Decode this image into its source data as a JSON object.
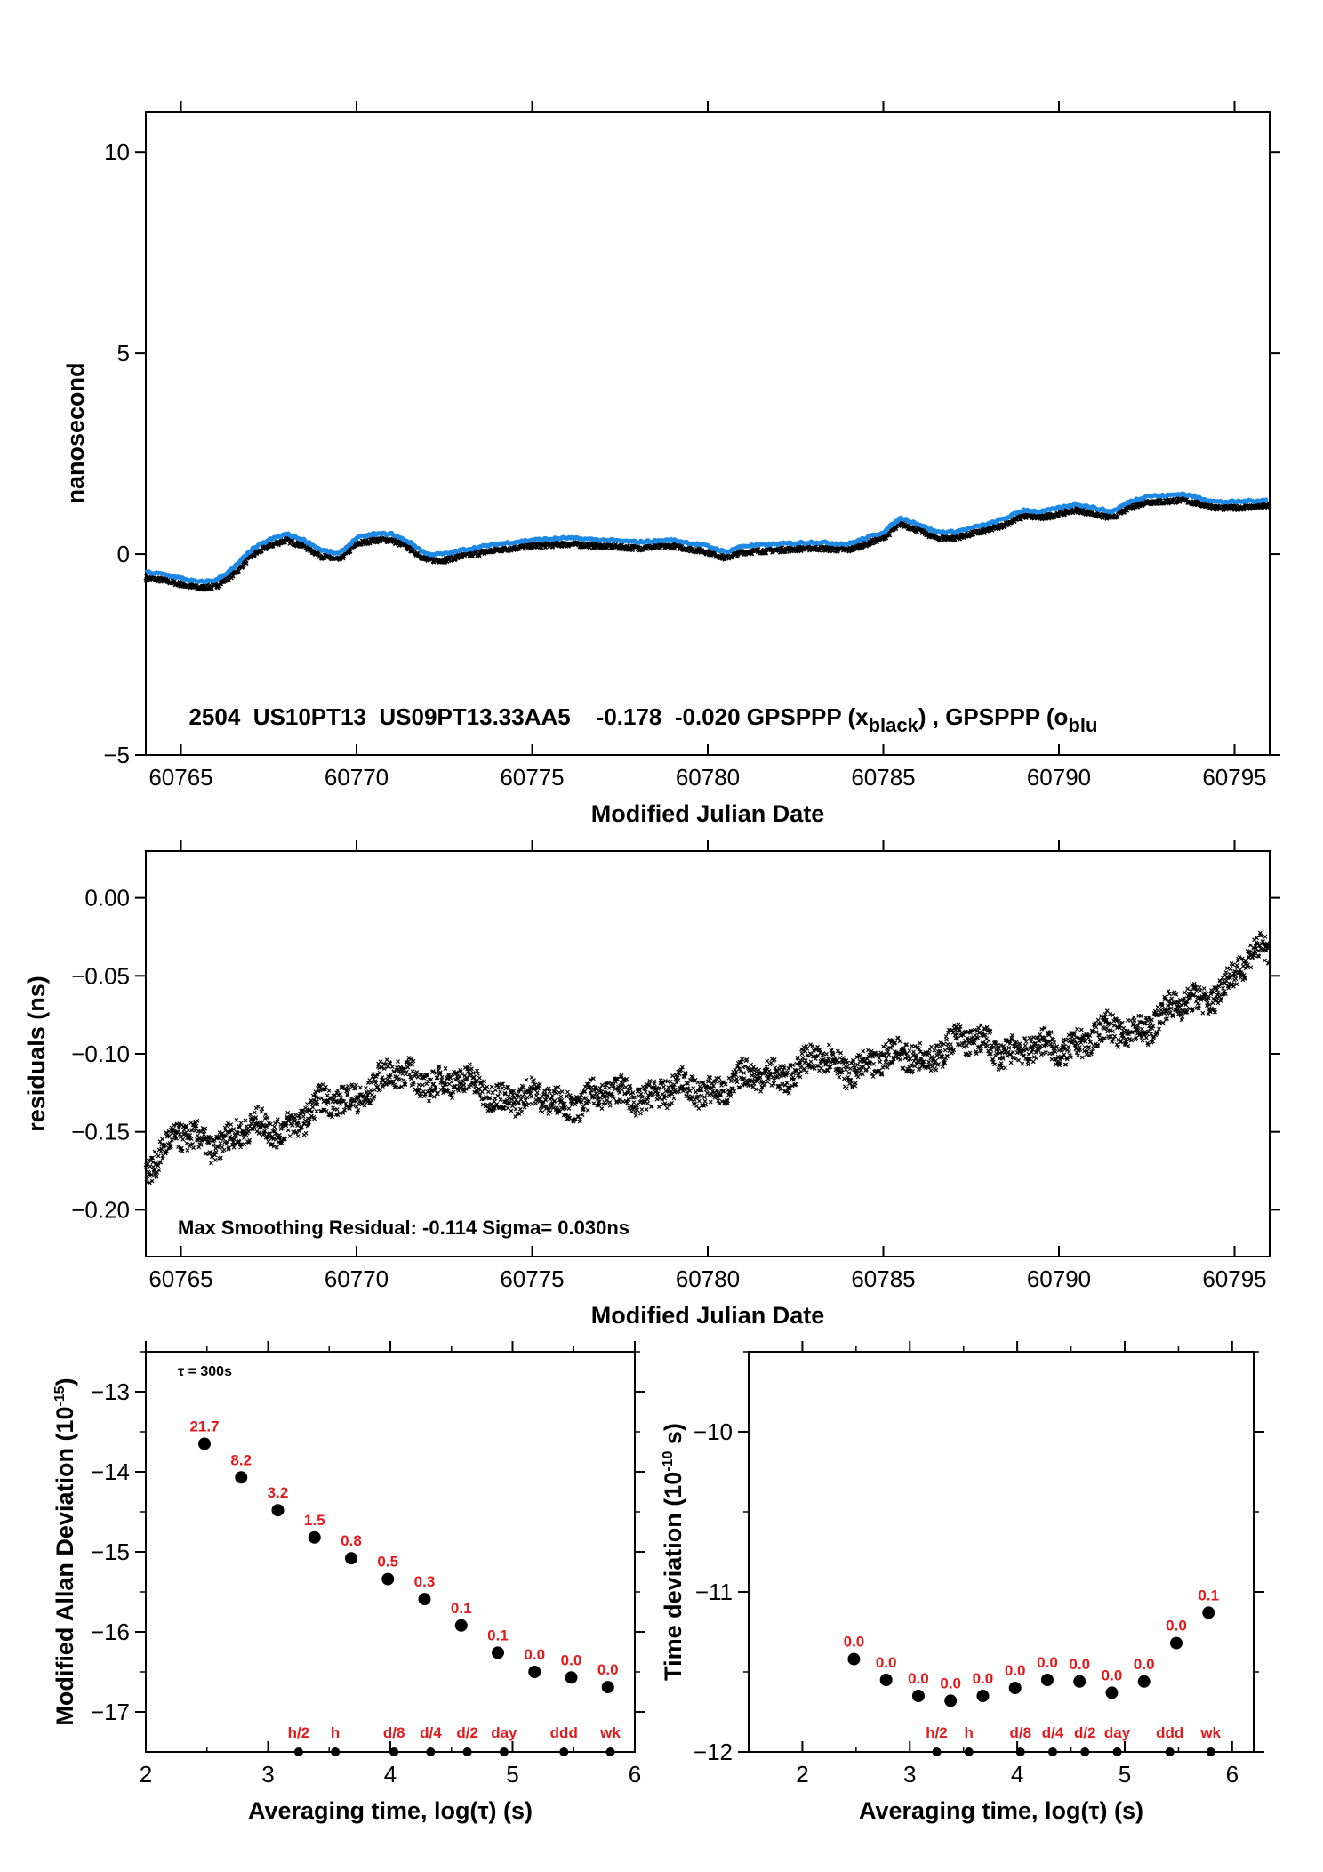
{
  "colors": {
    "black_series": "#000000",
    "blue_series": "#1e88e5",
    "label_red": "#e31a1c"
  },
  "chart_data": [
    {
      "type": "line",
      "ylabel": "nanosecond",
      "xlabel": "Modified Julian Date",
      "xlim": [
        60764,
        60796
      ],
      "ylim": [
        -5,
        11
      ],
      "xticks": [
        60765,
        60770,
        60775,
        60780,
        60785,
        60790,
        60795
      ],
      "yticks": [
        -5,
        0,
        5,
        10
      ],
      "annotation": {
        "main": "_2504_US10PT13_US09PT13.33AA5__-0.178_-0.020     GPSPPP (x",
        "sub1": "black",
        "mid": ") ,  GPSPPP (o",
        "sub2": "blu"
      },
      "series": [
        {
          "color": "black",
          "marker": "x",
          "x": [
            60764,
            60764.5,
            60765,
            60765.5,
            60766,
            60766.5,
            60767,
            60767.5,
            60768,
            60768.5,
            60769,
            60769.5,
            60770,
            60770.5,
            60771,
            60771.5,
            60772,
            60772.5,
            60773,
            60774,
            60775,
            60776,
            60777,
            60778,
            60779,
            60780,
            60780.5,
            60781,
            60782,
            60783,
            60784,
            60785,
            60785.5,
            60786,
            60786.5,
            60787,
            60787.5,
            60788,
            60788.5,
            60789,
            60789.5,
            60790,
            60790.5,
            60791,
            60791.5,
            60792,
            60792.5,
            60793,
            60793.5,
            60794,
            60794.5,
            60795,
            60796
          ],
          "y": [
            -0.6,
            -0.65,
            -0.75,
            -0.85,
            -0.8,
            -0.5,
            -0.05,
            0.2,
            0.35,
            0.2,
            -0.05,
            -0.15,
            0.25,
            0.35,
            0.35,
            0.15,
            -0.15,
            -0.15,
            -0.05,
            0.1,
            0.2,
            0.25,
            0.2,
            0.15,
            0.2,
            0.05,
            -0.1,
            0.05,
            0.1,
            0.15,
            0.1,
            0.4,
            0.75,
            0.6,
            0.4,
            0.4,
            0.5,
            0.6,
            0.75,
            0.95,
            0.9,
            1.0,
            1.1,
            1.0,
            0.9,
            1.15,
            1.3,
            1.3,
            1.35,
            1.25,
            1.15,
            1.15,
            1.2
          ]
        },
        {
          "color": "blue",
          "marker": "o",
          "x": [
            60764,
            60764.5,
            60765,
            60765.5,
            60766,
            60766.5,
            60767,
            60767.5,
            60768,
            60768.5,
            60769,
            60769.5,
            60770,
            60770.5,
            60771,
            60771.5,
            60772,
            60772.5,
            60773,
            60774,
            60775,
            60776,
            60777,
            60778,
            60779,
            60780,
            60780.5,
            60781,
            60782,
            60783,
            60784,
            60785,
            60785.5,
            60786,
            60786.5,
            60787,
            60787.5,
            60788,
            60788.5,
            60789,
            60789.5,
            60790,
            60790.5,
            60791,
            60791.5,
            60792,
            60792.5,
            60793,
            60793.5,
            60794,
            60794.5,
            60795,
            60796
          ],
          "y": [
            -0.45,
            -0.5,
            -0.6,
            -0.7,
            -0.65,
            -0.35,
            0.1,
            0.35,
            0.5,
            0.35,
            0.1,
            0.0,
            0.4,
            0.5,
            0.5,
            0.3,
            0.0,
            0.0,
            0.1,
            0.25,
            0.35,
            0.4,
            0.35,
            0.3,
            0.35,
            0.2,
            0.05,
            0.2,
            0.25,
            0.3,
            0.25,
            0.55,
            0.9,
            0.75,
            0.55,
            0.55,
            0.65,
            0.75,
            0.9,
            1.1,
            1.05,
            1.15,
            1.25,
            1.15,
            1.05,
            1.3,
            1.45,
            1.45,
            1.5,
            1.4,
            1.3,
            1.3,
            1.35
          ]
        }
      ]
    },
    {
      "type": "scatter",
      "ylabel": "residuals (ns)",
      "xlabel": "Modified Julian Date",
      "xlim": [
        60764,
        60796
      ],
      "ylim": [
        -0.23,
        0.03
      ],
      "xticks": [
        60765,
        60770,
        60775,
        60780,
        60785,
        60790,
        60795
      ],
      "yticks": [
        0.0,
        -0.05,
        -0.1,
        -0.15,
        -0.2
      ],
      "ytick_labels": [
        "0.00",
        "−0.05",
        "−0.10",
        "−0.15",
        "−0.20"
      ],
      "annotation": "Max Smoothing Residual: -0.114  Sigma= 0.030ns",
      "series": [
        {
          "marker": "x",
          "x": [
            60764,
            60765,
            60766,
            60767,
            60768,
            60769,
            60770,
            60771,
            60772,
            60773,
            60774,
            60775,
            60776,
            60777,
            60778,
            60779,
            60780,
            60781,
            60782,
            60783,
            60784,
            60785,
            60786,
            60787,
            60788,
            60789,
            60790,
            60791,
            60792,
            60793,
            60794,
            60795,
            60796
          ],
          "y": [
            -0.17,
            -0.155,
            -0.155,
            -0.15,
            -0.145,
            -0.135,
            -0.125,
            -0.115,
            -0.115,
            -0.12,
            -0.125,
            -0.13,
            -0.13,
            -0.128,
            -0.125,
            -0.125,
            -0.122,
            -0.118,
            -0.112,
            -0.105,
            -0.108,
            -0.105,
            -0.1,
            -0.095,
            -0.092,
            -0.1,
            -0.095,
            -0.09,
            -0.085,
            -0.075,
            -0.065,
            -0.05,
            -0.03
          ]
        }
      ]
    },
    {
      "type": "scatter",
      "ylabel": "Modified Allan Deviation (10",
      "ylabel_sup": "-15",
      "ylabel_end": ")",
      "xlabel": "Averaging time, log(τ) (s)",
      "xlim": [
        2,
        6
      ],
      "ylim": [
        -17.5,
        -12.5
      ],
      "xticks": [
        2,
        3,
        4,
        5,
        6
      ],
      "yticks": [
        -13,
        -14,
        -15,
        -16,
        -17
      ],
      "ytick_labels": [
        "−13",
        "−14",
        "−15",
        "−16",
        "−17"
      ],
      "tau_note": "τ = 300s",
      "points": {
        "x": [
          2.48,
          2.78,
          3.08,
          3.38,
          3.68,
          3.98,
          4.28,
          4.58,
          4.88,
          5.18,
          5.48,
          5.78
        ],
        "y": [
          -13.65,
          -14.07,
          -14.48,
          -14.82,
          -15.08,
          -15.34,
          -15.59,
          -15.92,
          -16.26,
          -16.5,
          -16.57,
          -16.69
        ],
        "labels": [
          "21.7",
          "8.2",
          "3.2",
          "1.5",
          "0.8",
          "0.5",
          "0.3",
          "0.1",
          "0.1",
          "0.0",
          "0.0",
          "0.0"
        ]
      },
      "markers": {
        "x": [
          3.25,
          3.55,
          4.03,
          4.33,
          4.63,
          4.93,
          5.42,
          5.8
        ],
        "labels": [
          "h/2",
          "h",
          "d/8",
          "d/4",
          "d/2",
          "day",
          "ddd",
          "wk"
        ]
      }
    },
    {
      "type": "scatter",
      "ylabel": "Time deviation (10",
      "ylabel_sup": "-10",
      "ylabel_end": " s)",
      "xlabel": "Averaging time, log(τ) (s)",
      "xlim": [
        1.5,
        6.2
      ],
      "ylim": [
        -12,
        -9.5
      ],
      "xticks": [
        2,
        3,
        4,
        5,
        6
      ],
      "yticks": [
        -10,
        -11,
        -12
      ],
      "ytick_labels": [
        "−10",
        "−11",
        "−12"
      ],
      "points": {
        "x": [
          2.48,
          2.78,
          3.08,
          3.38,
          3.68,
          3.98,
          4.28,
          4.58,
          4.88,
          5.18,
          5.48,
          5.78
        ],
        "y": [
          -11.42,
          -11.55,
          -11.65,
          -11.68,
          -11.65,
          -11.6,
          -11.55,
          -11.56,
          -11.63,
          -11.56,
          -11.32,
          -11.13
        ],
        "labels": [
          "0.0",
          "0.0",
          "0.0",
          "0.0",
          "0.0",
          "0.0",
          "0.0",
          "0.0",
          "0.0",
          "0.0",
          "0.0",
          "0.1"
        ]
      },
      "markers": {
        "x": [
          3.25,
          3.55,
          4.03,
          4.33,
          4.63,
          4.93,
          5.42,
          5.8
        ],
        "labels": [
          "h/2",
          "h",
          "d/8",
          "d/4",
          "d/2",
          "day",
          "ddd",
          "wk"
        ]
      }
    }
  ]
}
